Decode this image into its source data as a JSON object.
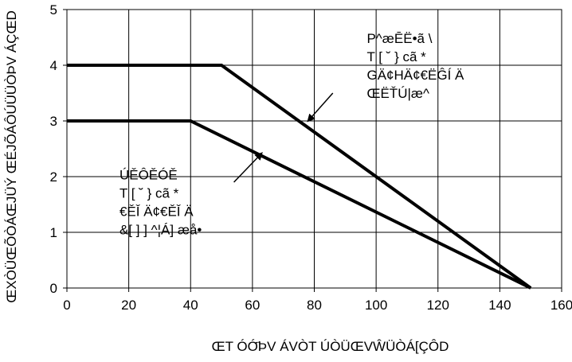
{
  "chart_data": {
    "type": "line",
    "title": "",
    "xlabel": "ŒT ÓÓ҃ÞV ÁVÒT ÚÒÜŒVŴÜÒÁ[ÇÔD",
    "ylabel": "ŒXÒÜŒÕÒÁŒJÜÝ ŒÉJÕÁÔÚÜÜÒÞV ÁÇŒD",
    "xlim": [
      0,
      160
    ],
    "ylim": [
      0,
      5
    ],
    "xticks": [
      0,
      20,
      40,
      60,
      80,
      100,
      120,
      140,
      160
    ],
    "yticks": [
      0,
      1,
      2,
      3,
      4,
      5
    ],
    "grid": true,
    "series": [
      {
        "x": [
          0,
          50,
          150
        ],
        "y": [
          4,
          4,
          0
        ],
        "color": "#000000"
      },
      {
        "x": [
          0,
          40,
          150
        ],
        "y": [
          3,
          3,
          0
        ],
        "color": "#000000"
      }
    ],
    "annotations": [
      {
        "lines": [
          "P^æĒË•ã \\",
          "T [ ˘ } cã *",
          "GÄ¢HÄ¢€ËĜÍ Ä",
          "ŒËŤÚ|æ^"
        ],
        "x": 97,
        "y": 4.4,
        "arrow_from": [
          86,
          3.5
        ],
        "arrow_to": [
          78,
          3.0
        ]
      },
      {
        "lines": [
          "ÚĚÔĚÓĚ",
          "T [ ˘ } cã *",
          "€ĚǏ Ä¢€ĚǏ Ä",
          "&[ ] ] ^¦Á] æå•"
        ],
        "x": 17,
        "y": 1.95,
        "arrow_from": [
          54,
          1.9
        ],
        "arrow_to": [
          63,
          2.42
        ]
      }
    ]
  }
}
